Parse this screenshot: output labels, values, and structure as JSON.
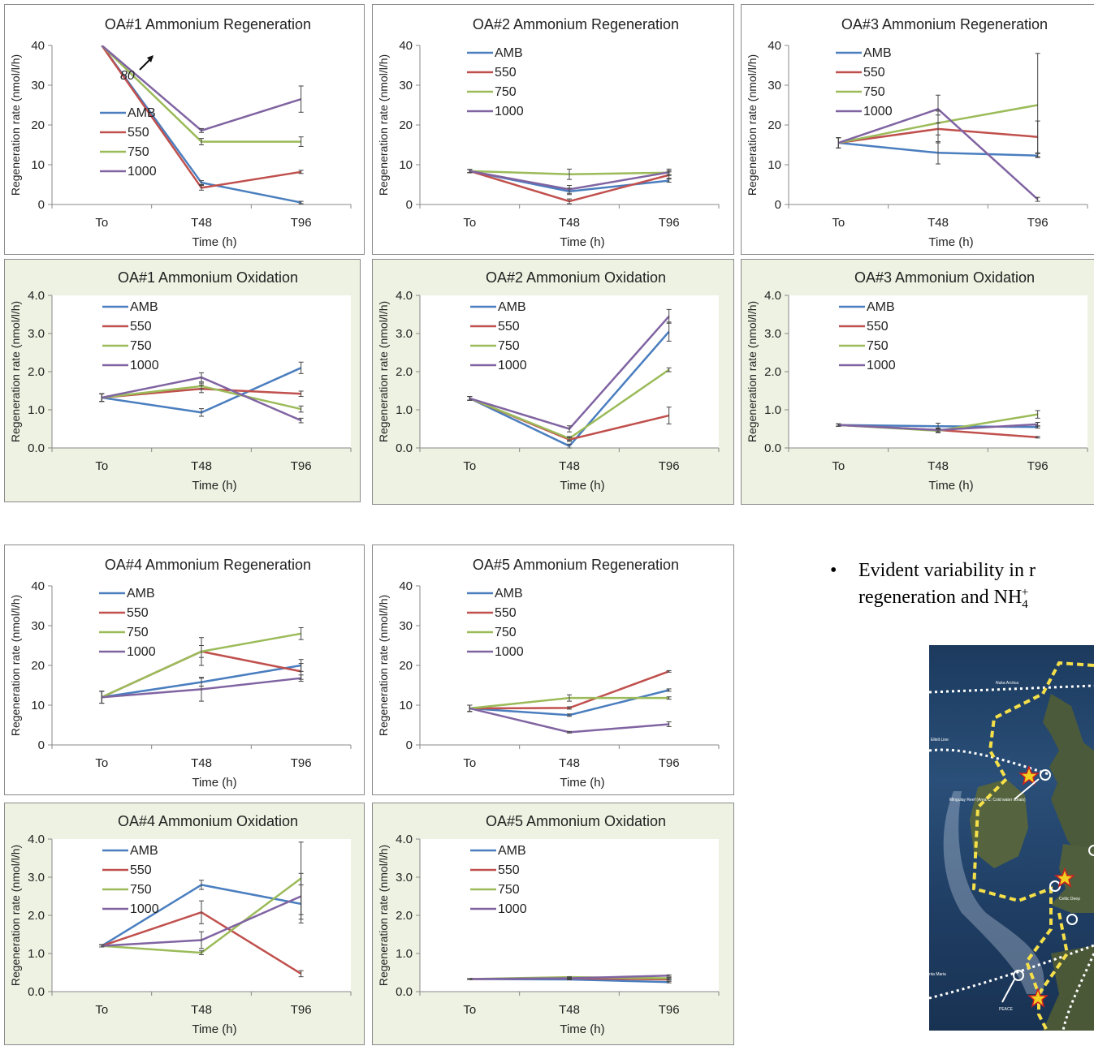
{
  "chart_data": [
    {
      "id": "oa1-reg",
      "type": "line",
      "title": "OA#1 Ammonium Regeneration",
      "xlabel": "Time (h)",
      "ylabel": "Regeneration rate (nmol/l/h)",
      "categories": [
        "To",
        "T48",
        "T96"
      ],
      "ylim": [
        0,
        40
      ],
      "yticks": [
        "0",
        "10",
        "20",
        "30",
        "40"
      ],
      "series": [
        {
          "name": "AMB",
          "values": [
            80,
            5.5,
            0.5
          ],
          "err": [
            0,
            0.5,
            0.3
          ]
        },
        {
          "name": "550",
          "values": [
            80,
            4.2,
            8.2
          ],
          "err": [
            0,
            0.6,
            0.4
          ]
        },
        {
          "name": "750",
          "values": [
            80,
            15.8,
            15.8
          ],
          "err": [
            0,
            0.8,
            1.2
          ]
        },
        {
          "name": "1000",
          "values": [
            80,
            18.6,
            26.5
          ],
          "err": [
            0,
            0.5,
            3.3
          ]
        }
      ],
      "annotation": "80"
    },
    {
      "id": "oa2-reg",
      "type": "line",
      "title": "OA#2 Ammonium Regeneration",
      "xlabel": "Time (h)",
      "ylabel": "Regeneration rate (nmol/l/h)",
      "categories": [
        "To",
        "T48",
        "T96"
      ],
      "ylim": [
        0,
        40
      ],
      "yticks": [
        "0",
        "10",
        "20",
        "30",
        "40"
      ],
      "series": [
        {
          "name": "AMB",
          "values": [
            8.4,
            3.3,
            6.0
          ],
          "err": [
            0.4,
            0.8,
            0.4
          ]
        },
        {
          "name": "550",
          "values": [
            8.4,
            0.8,
            7.4
          ],
          "err": [
            0.4,
            0.6,
            0.8
          ]
        },
        {
          "name": "750",
          "values": [
            8.4,
            7.6,
            8.0
          ],
          "err": [
            0.4,
            1.3,
            0.5
          ]
        },
        {
          "name": "1000",
          "values": [
            8.4,
            3.8,
            8.1
          ],
          "err": [
            0.4,
            1.0,
            0.8
          ]
        }
      ]
    },
    {
      "id": "oa3-reg",
      "type": "line",
      "title": "OA#3 Ammonium Regeneration",
      "xlabel": "Time (h)",
      "ylabel": "Regeneration rate (nmol/l/h)",
      "categories": [
        "To",
        "T48",
        "T96"
      ],
      "ylim": [
        0,
        40
      ],
      "yticks": [
        "0",
        "10",
        "20",
        "30",
        "40"
      ],
      "series": [
        {
          "name": "AMB",
          "values": [
            15.5,
            13.0,
            12.3
          ],
          "err": [
            1.3,
            2.8,
            0.5
          ]
        },
        {
          "name": "550",
          "values": [
            15.5,
            19.0,
            17.0
          ],
          "err": [
            1.3,
            3.5,
            4.0
          ]
        },
        {
          "name": "750",
          "values": [
            15.5,
            20.5,
            25.0
          ],
          "err": [
            1.3,
            3.0,
            13.0
          ]
        },
        {
          "name": "1000",
          "values": [
            15.5,
            24.0,
            1.3
          ],
          "err": [
            1.3,
            3.5,
            0.5
          ]
        }
      ]
    },
    {
      "id": "oa1-ox",
      "type": "line",
      "title": "OA#1 Ammonium Oxidation",
      "xlabel": "Time (h)",
      "ylabel": "Regeneration rate (nmol/l/h)",
      "categories": [
        "To",
        "T48",
        "T96"
      ],
      "ylim": [
        0,
        4
      ],
      "yticks": [
        "0.0",
        "1.0",
        "2.0",
        "3.0",
        "4.0"
      ],
      "series": [
        {
          "name": "AMB",
          "values": [
            1.32,
            0.93,
            2.1
          ],
          "err": [
            0.1,
            0.1,
            0.15
          ]
        },
        {
          "name": "550",
          "values": [
            1.32,
            1.55,
            1.42
          ],
          "err": [
            0.1,
            0.1,
            0.07
          ]
        },
        {
          "name": "750",
          "values": [
            1.32,
            1.62,
            1.02
          ],
          "err": [
            0.1,
            0.08,
            0.08
          ]
        },
        {
          "name": "1000",
          "values": [
            1.32,
            1.85,
            0.72
          ],
          "err": [
            0.1,
            0.12,
            0.06
          ]
        }
      ]
    },
    {
      "id": "oa2-ox",
      "type": "line",
      "title": "OA#2 Ammonium Oxidation",
      "xlabel": "Time (h)",
      "ylabel": "Regeneration rate (nmol/l/h)",
      "categories": [
        "To",
        "T48",
        "T96"
      ],
      "ylim": [
        0,
        4
      ],
      "yticks": [
        "0.0",
        "1.0",
        "2.0",
        "3.0",
        "4.0"
      ],
      "series": [
        {
          "name": "AMB",
          "values": [
            1.3,
            0.05,
            3.05
          ],
          "err": [
            0.05,
            0.05,
            0.25
          ]
        },
        {
          "name": "550",
          "values": [
            1.3,
            0.22,
            0.85
          ],
          "err": [
            0.05,
            0.05,
            0.22
          ]
        },
        {
          "name": "750",
          "values": [
            1.3,
            0.25,
            2.05
          ],
          "err": [
            0.05,
            0.05,
            0.05
          ]
        },
        {
          "name": "1000",
          "values": [
            1.3,
            0.5,
            3.45
          ],
          "err": [
            0.05,
            0.08,
            0.18
          ]
        }
      ]
    },
    {
      "id": "oa3-ox",
      "type": "line",
      "title": "OA#3 Ammonium Oxidation",
      "xlabel": "Time (h)",
      "ylabel": "Regeneration rate (nmol/l/h)",
      "categories": [
        "To",
        "T48",
        "T96"
      ],
      "ylim": [
        0,
        4
      ],
      "yticks": [
        "0.0",
        "1.0",
        "2.0",
        "3.0",
        "4.0"
      ],
      "series": [
        {
          "name": "AMB",
          "values": [
            0.6,
            0.57,
            0.55
          ],
          "err": [
            0.03,
            0.08,
            0.03
          ]
        },
        {
          "name": "550",
          "values": [
            0.6,
            0.47,
            0.28
          ],
          "err": [
            0.03,
            0.05,
            0.02
          ]
        },
        {
          "name": "750",
          "values": [
            0.6,
            0.45,
            0.88
          ],
          "err": [
            0.03,
            0.05,
            0.1
          ]
        },
        {
          "name": "1000",
          "values": [
            0.6,
            0.47,
            0.62
          ],
          "err": [
            0.03,
            0.05,
            0.05
          ]
        }
      ]
    },
    {
      "id": "oa4-reg",
      "type": "line",
      "title": "OA#4 Ammonium Regeneration",
      "xlabel": "Time (h)",
      "ylabel": "Regeneration rate (nmol/l/h)",
      "categories": [
        "To",
        "T48",
        "T96"
      ],
      "ylim": [
        0,
        40
      ],
      "yticks": [
        "0",
        "10",
        "20",
        "30",
        "40"
      ],
      "series": [
        {
          "name": "AMB",
          "values": [
            12.0,
            15.8,
            20.0
          ],
          "err": [
            1.5,
            1.0,
            1.5
          ]
        },
        {
          "name": "550",
          "values": [
            12.0,
            23.5,
            18.5
          ],
          "err": [
            1.5,
            3.5,
            2.0
          ]
        },
        {
          "name": "750",
          "values": [
            12.0,
            23.5,
            28.0
          ],
          "err": [
            1.5,
            1.5,
            1.5
          ]
        },
        {
          "name": "1000",
          "values": [
            12.0,
            14.0,
            16.8
          ],
          "err": [
            1.5,
            3.0,
            0.8
          ]
        }
      ]
    },
    {
      "id": "oa5-reg",
      "type": "line",
      "title": "OA#5 Ammonium Regeneration",
      "xlabel": "Time (h)",
      "ylabel": "Regeneration rate (nmol/l/h)",
      "categories": [
        "To",
        "T48",
        "T96"
      ],
      "ylim": [
        0,
        40
      ],
      "yticks": [
        "0",
        "10",
        "20",
        "30",
        "40"
      ],
      "series": [
        {
          "name": "AMB",
          "values": [
            9.2,
            7.5,
            13.8
          ],
          "err": [
            0.8,
            0.3,
            0.3
          ]
        },
        {
          "name": "550",
          "values": [
            9.2,
            9.3,
            18.5
          ],
          "err": [
            0.8,
            0.3,
            0.2
          ]
        },
        {
          "name": "750",
          "values": [
            9.2,
            11.8,
            11.8
          ],
          "err": [
            0.8,
            0.8,
            0.3
          ]
        },
        {
          "name": "1000",
          "values": [
            9.2,
            3.2,
            5.2
          ],
          "err": [
            0.8,
            0.2,
            0.6
          ]
        }
      ]
    },
    {
      "id": "oa4-ox",
      "type": "line",
      "title": "OA#4 Ammonium Oxidation",
      "xlabel": "Time (h)",
      "ylabel": "Regeneration rate (nmol/l/h)",
      "categories": [
        "To",
        "T48",
        "T96"
      ],
      "ylim": [
        0,
        4
      ],
      "yticks": [
        "0.0",
        "1.0",
        "2.0",
        "3.0",
        "4.0"
      ],
      "series": [
        {
          "name": "AMB",
          "values": [
            1.2,
            2.8,
            2.3
          ],
          "err": [
            0.03,
            0.12,
            0.5
          ]
        },
        {
          "name": "550",
          "values": [
            1.2,
            2.08,
            0.47
          ],
          "err": [
            0.03,
            0.3,
            0.08
          ]
        },
        {
          "name": "750",
          "values": [
            1.2,
            1.02,
            2.97
          ],
          "err": [
            0.03,
            0.05,
            0.95
          ]
        },
        {
          "name": "1000",
          "values": [
            1.2,
            1.35,
            2.5
          ],
          "err": [
            0.03,
            0.22,
            0.6
          ]
        }
      ]
    },
    {
      "id": "oa5-ox",
      "type": "line",
      "title": "OA#5 Ammonium Oxidation",
      "xlabel": "Time (h)",
      "ylabel": "Regeneration rate (nmol/l/h)",
      "categories": [
        "To",
        "T48",
        "T96"
      ],
      "ylim": [
        0,
        4
      ],
      "yticks": [
        "0.0",
        "1.0",
        "2.0",
        "3.0",
        "4.0"
      ],
      "series": [
        {
          "name": "AMB",
          "values": [
            0.33,
            0.32,
            0.25
          ],
          "err": [
            0.01,
            0.01,
            0.02
          ]
        },
        {
          "name": "550",
          "values": [
            0.33,
            0.35,
            0.32
          ],
          "err": [
            0.01,
            0.01,
            0.02
          ]
        },
        {
          "name": "750",
          "values": [
            0.33,
            0.38,
            0.35
          ],
          "err": [
            0.01,
            0.01,
            0.02
          ]
        },
        {
          "name": "1000",
          "values": [
            0.33,
            0.35,
            0.42
          ],
          "err": [
            0.01,
            0.01,
            0.02
          ]
        }
      ]
    }
  ],
  "colors": {
    "AMB": "#4a7ebf",
    "550": "#c0504d",
    "750": "#9bbb59",
    "1000": "#8064a2"
  },
  "oxidation_panel_bg": "#eef2e2",
  "bullet": {
    "symbol": "•",
    "line1": "Evident variability in r",
    "line2_pre": "regeneration and NH",
    "sub": "4",
    "sup": "+"
  },
  "map": {
    "labels": [
      "Nuka Arctica",
      "Ellett Line",
      "Mingulay Reef (Area C: Cold water corals)",
      "Celtic Deep",
      "nta Maria",
      "PEACE"
    ]
  }
}
